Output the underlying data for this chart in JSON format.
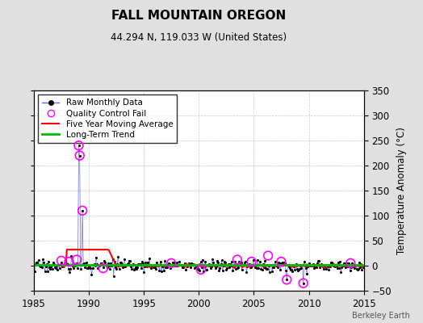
{
  "title": "FALL MOUNTAIN OREGON",
  "subtitle": "44.294 N, 119.033 W (United States)",
  "ylabel_right": "Temperature Anomaly (°C)",
  "watermark": "Berkeley Earth",
  "xlim": [
    1985,
    2015
  ],
  "ylim": [
    -50,
    350
  ],
  "yticks": [
    -50,
    0,
    50,
    100,
    150,
    200,
    250,
    300,
    350
  ],
  "xticks": [
    1985,
    1990,
    1995,
    2000,
    2005,
    2010,
    2015
  ],
  "bg_color": "#e0e0e0",
  "plot_bg_color": "#ffffff",
  "grid_color": "#c8c8c8",
  "raw_color": "#6666ff",
  "raw_marker_color": "#000000",
  "qc_fail_color": "#ff00ff",
  "moving_avg_color": "#ff0000",
  "trend_color": "#00bb00",
  "spike1_year": 1989.08,
  "spike1_val": 240,
  "spike2_year": 1989.17,
  "spike2_val": 220,
  "spike3_year": 1989.42,
  "spike3_val": 110,
  "qc_fail_years": [
    1989.08,
    1989.17,
    1989.42,
    1987.5,
    1988.2,
    1988.9,
    1991.3,
    1997.5,
    2000.2,
    2003.5,
    2004.8,
    2006.3,
    2007.5,
    2008.0,
    2009.5,
    2013.8
  ],
  "qc_fail_values": [
    240,
    220,
    110,
    10,
    8,
    12,
    -5,
    5,
    -8,
    12,
    8,
    20,
    8,
    -28,
    -35,
    5
  ],
  "moving_avg_flat_start": 1988.0,
  "moving_avg_flat_end": 1991.8,
  "moving_avg_flat_val": 32,
  "moving_avg_drop_end": 1992.5,
  "noise_std": 6,
  "random_seed": 17
}
